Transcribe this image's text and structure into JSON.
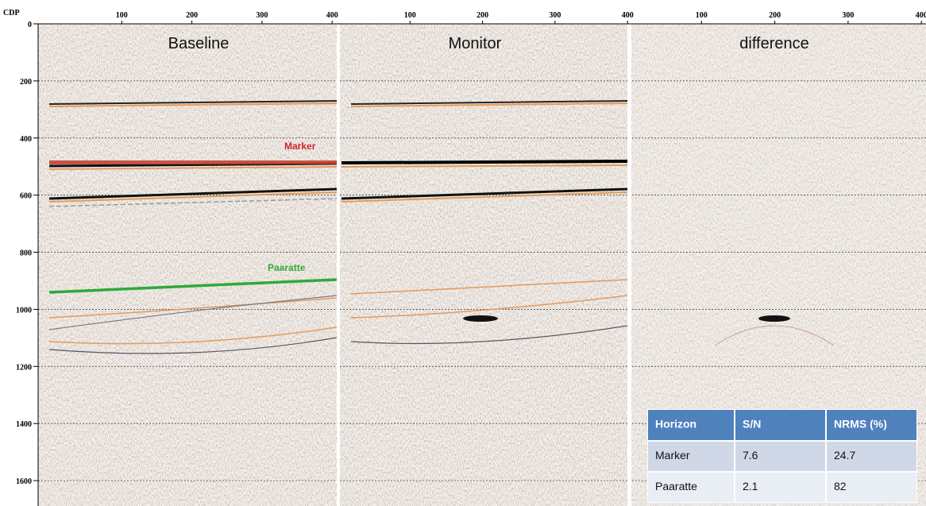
{
  "x_axis": {
    "label": "CDP",
    "ticks": [
      100,
      200,
      300,
      400
    ]
  },
  "y_axis": {
    "ticks": [
      0,
      200,
      400,
      600,
      800,
      1000,
      1200,
      1400,
      1600
    ]
  },
  "panels": [
    {
      "title": "Baseline"
    },
    {
      "title": "Monitor"
    },
    {
      "title": "difference"
    }
  ],
  "annotations": {
    "marker": "Marker",
    "paaratte": "Paaratte"
  },
  "table": {
    "header": [
      "Horizon",
      "S/N",
      "NRMS (%)"
    ],
    "rows": [
      [
        "Marker",
        7.6,
        24.7
      ],
      [
        "Paaratte",
        2.1,
        82
      ]
    ]
  }
}
